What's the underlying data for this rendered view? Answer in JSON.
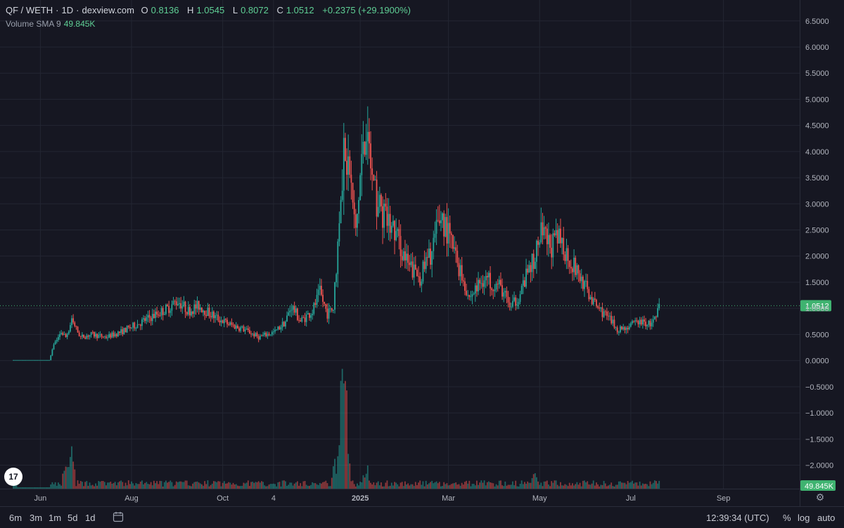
{
  "header": {
    "symbol": "QF / WETH",
    "sep1": "·",
    "interval": "1D",
    "sep2": "·",
    "source": "dexview.com",
    "o_label": "O",
    "o_value": "0.8136",
    "h_label": "H",
    "h_value": "1.0545",
    "l_label": "L",
    "l_value": "0.8072",
    "c_label": "C",
    "c_value": "1.0512",
    "change": "+0.2375 (+29.1900%)"
  },
  "volume_indicator": {
    "label": "Volume SMA 9",
    "value": "49.845K"
  },
  "bottom_bar": {
    "ranges": [
      "6m",
      "3m",
      "1m",
      "5d",
      "1d"
    ],
    "time": "12:39:34 (UTC)",
    "percent": "%",
    "log": "log",
    "auto": "auto"
  },
  "colors": {
    "up": "#26a69a",
    "down": "#ef5350",
    "background": "#161722",
    "grid": "#232632",
    "price_tag": "#3fb370"
  },
  "icons": [
    "tradingview-logo-icon",
    "gear-icon",
    "calendar-range-icon"
  ],
  "chart_data": {
    "type": "candlestick",
    "pair": "QF / WETH",
    "interval": "1D",
    "current_price": "1.0512",
    "volume_sma": "49.845K",
    "y_ticks": [
      "6.5000",
      "6.0000",
      "5.5000",
      "5.0000",
      "4.5000",
      "4.0000",
      "3.5000",
      "3.0000",
      "2.5000",
      "2.0000",
      "1.5000",
      "1.0000",
      "0.5000",
      "0.0000",
      "−0.5000",
      "−1.0000",
      "−1.5000",
      "−2.0000"
    ],
    "x_ticks": [
      "Jun",
      "Aug",
      "Oct",
      "4",
      "2025",
      "Mar",
      "May",
      "Jul",
      "Sep"
    ],
    "ylim": [
      -2.45,
      6.9
    ],
    "x_domain": [
      "2024-05-05",
      "2025-10-22"
    ],
    "close_path": [
      [
        "2024-05-14",
        0.01
      ],
      [
        "2024-06-07",
        0.01
      ],
      [
        "2024-06-10",
        0.3
      ],
      [
        "2024-06-15",
        0.55
      ],
      [
        "2024-06-18",
        0.45
      ],
      [
        "2024-06-22",
        0.75
      ],
      [
        "2024-06-28",
        0.45
      ],
      [
        "2024-07-05",
        0.5
      ],
      [
        "2024-07-15",
        0.45
      ],
      [
        "2024-07-25",
        0.55
      ],
      [
        "2024-08-05",
        0.7
      ],
      [
        "2024-08-15",
        0.85
      ],
      [
        "2024-08-25",
        1.0
      ],
      [
        "2024-09-01",
        1.15
      ],
      [
        "2024-09-08",
        0.95
      ],
      [
        "2024-09-15",
        1.05
      ],
      [
        "2024-09-25",
        0.85
      ],
      [
        "2024-10-05",
        0.7
      ],
      [
        "2024-10-15",
        0.6
      ],
      [
        "2024-10-25",
        0.45
      ],
      [
        "2024-11-05",
        0.55
      ],
      [
        "2024-11-12",
        0.75
      ],
      [
        "2024-11-16",
        1.05
      ],
      [
        "2024-11-22",
        0.75
      ],
      [
        "2024-11-30",
        0.95
      ],
      [
        "2024-12-05",
        1.3
      ],
      [
        "2024-12-10",
        0.9
      ],
      [
        "2024-12-14",
        1.0
      ],
      [
        "2024-12-17",
        2.2
      ],
      [
        "2024-12-21",
        4.1
      ],
      [
        "2024-12-25",
        3.6
      ],
      [
        "2024-12-29",
        2.4
      ],
      [
        "2025-01-02",
        3.9
      ],
      [
        "2025-01-06",
        4.2
      ],
      [
        "2025-01-10",
        3.2
      ],
      [
        "2025-01-16",
        2.8
      ],
      [
        "2025-01-25",
        2.4
      ],
      [
        "2025-02-02",
        1.8
      ],
      [
        "2025-02-10",
        1.6
      ],
      [
        "2025-02-18",
        2.1
      ],
      [
        "2025-02-24",
        2.8
      ],
      [
        "2025-03-01",
        2.4
      ],
      [
        "2025-03-08",
        1.8
      ],
      [
        "2025-03-15",
        1.2
      ],
      [
        "2025-03-25",
        1.6
      ],
      [
        "2025-04-05",
        1.4
      ],
      [
        "2025-04-12",
        1.0
      ],
      [
        "2025-04-18",
        1.3
      ],
      [
        "2025-04-25",
        1.8
      ],
      [
        "2025-05-02",
        2.4
      ],
      [
        "2025-05-08",
        2.2
      ],
      [
        "2025-05-15",
        2.3
      ],
      [
        "2025-05-22",
        1.9
      ],
      [
        "2025-05-30",
        1.5
      ],
      [
        "2025-06-06",
        1.1
      ],
      [
        "2025-06-15",
        0.85
      ],
      [
        "2025-06-22",
        0.6
      ],
      [
        "2025-06-30",
        0.65
      ],
      [
        "2025-07-06",
        0.75
      ],
      [
        "2025-07-14",
        0.7
      ],
      [
        "2025-07-18",
        0.8
      ],
      [
        "2025-07-20",
        1.05
      ]
    ],
    "volume_peaks": [
      [
        "2024-05-14",
        0.35
      ],
      [
        "2024-06-18",
        0.55
      ],
      [
        "2024-06-22",
        1.0
      ],
      [
        "2024-12-15",
        0.6
      ],
      [
        "2024-12-19",
        1.8
      ],
      [
        "2024-12-21",
        2.4
      ],
      [
        "2024-12-23",
        1.4
      ],
      [
        "2025-01-05",
        0.5
      ],
      [
        "2025-04-28",
        0.3
      ]
    ]
  }
}
